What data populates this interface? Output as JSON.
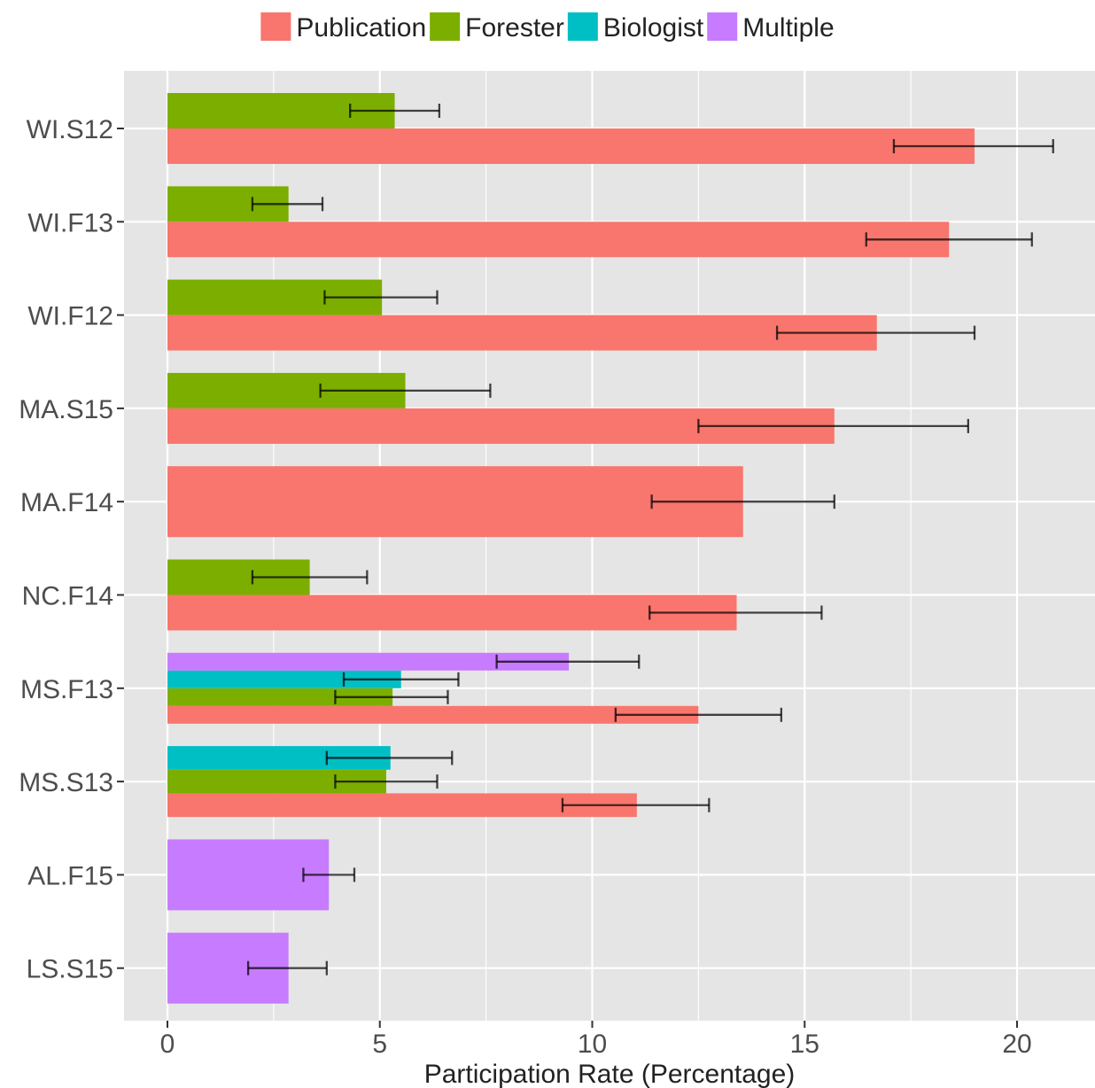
{
  "chart_data": {
    "type": "bar",
    "orientation": "horizontal",
    "title": "",
    "xlabel": "Participation Rate (Percentage)",
    "ylabel": "",
    "xlim": [
      -1,
      22
    ],
    "x_ticks": [
      0,
      5,
      10,
      15,
      20
    ],
    "grid": true,
    "legend_position": "top",
    "categories": [
      "WI.S12",
      "WI.F13",
      "WI.F12",
      "MA.S15",
      "MA.F14",
      "NC.F14",
      "MS.F13",
      "MS.S13",
      "AL.F15",
      "LS.S15"
    ],
    "series": [
      {
        "name": "Publication",
        "color": "#F8766D",
        "values": [
          19.0,
          18.4,
          16.7,
          15.7,
          13.55,
          13.4,
          12.5,
          11.05,
          null,
          null
        ],
        "error_low": [
          17.1,
          16.45,
          14.35,
          12.5,
          11.4,
          11.35,
          10.55,
          9.3,
          null,
          null
        ],
        "error_high": [
          20.85,
          20.35,
          19.0,
          18.85,
          15.7,
          15.4,
          14.45,
          12.75,
          null,
          null
        ]
      },
      {
        "name": "Forester",
        "color": "#7CAE00",
        "values": [
          5.35,
          2.85,
          5.05,
          5.6,
          null,
          3.35,
          5.3,
          5.15,
          null,
          null
        ],
        "error_low": [
          4.3,
          2.0,
          3.7,
          3.6,
          null,
          2.0,
          3.95,
          3.95,
          null,
          null
        ],
        "error_high": [
          6.4,
          3.65,
          6.35,
          7.6,
          null,
          4.7,
          6.6,
          6.35,
          null,
          null
        ]
      },
      {
        "name": "Biologist",
        "color": "#00BFC4",
        "values": [
          null,
          null,
          null,
          null,
          null,
          null,
          5.5,
          5.25,
          null,
          null
        ],
        "error_low": [
          null,
          null,
          null,
          null,
          null,
          null,
          4.15,
          3.75,
          null,
          null
        ],
        "error_high": [
          null,
          null,
          null,
          null,
          null,
          null,
          6.85,
          6.7,
          null,
          null
        ]
      },
      {
        "name": "Multiple",
        "color": "#C77CFF",
        "values": [
          null,
          null,
          null,
          null,
          null,
          null,
          9.45,
          null,
          3.8,
          2.85
        ],
        "error_low": [
          null,
          null,
          null,
          null,
          null,
          null,
          7.75,
          null,
          3.2,
          1.9
        ],
        "error_high": [
          null,
          null,
          null,
          null,
          null,
          null,
          11.1,
          null,
          4.4,
          3.75
        ]
      }
    ]
  }
}
